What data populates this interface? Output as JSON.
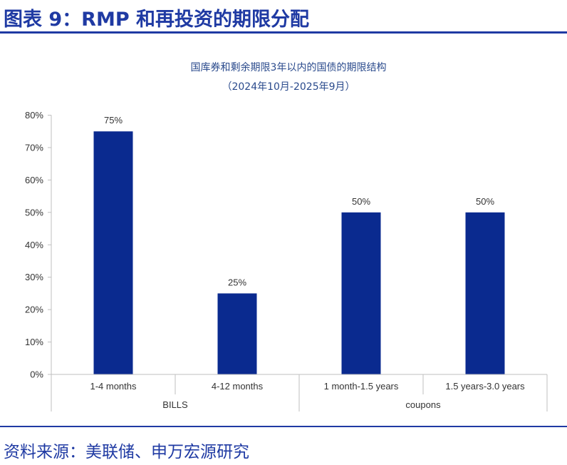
{
  "header": {
    "title": "图表 9：RMP 和再投资的期限分配"
  },
  "footer": {
    "source": "资料来源：美联储、申万宏源研究"
  },
  "colors": {
    "accent": "#1f3aa3",
    "bar": "#0a2a8f",
    "axis": "#bfbfbf"
  },
  "chart_data": {
    "type": "bar",
    "title": "国库券和剩余期限3年以内的国债的期限结构",
    "subtitle": "（2024年10月-2025年9月）",
    "categories": [
      "1-4 months",
      "4-12 months",
      "1 month-1.5 years",
      "1.5 years-3.0 years"
    ],
    "groups": [
      {
        "name": "BILLS",
        "categories": [
          "1-4 months",
          "4-12 months"
        ]
      },
      {
        "name": "coupons",
        "categories": [
          "1 month-1.5 years",
          "1.5 years-3.0 years"
        ]
      }
    ],
    "values": [
      75,
      25,
      50,
      50
    ],
    "data_labels": [
      "75%",
      "25%",
      "50%",
      "50%"
    ],
    "y_ticks": [
      "0%",
      "10%",
      "20%",
      "30%",
      "40%",
      "50%",
      "60%",
      "70%",
      "80%"
    ],
    "ylim": [
      0,
      80
    ],
    "xlabel": "",
    "ylabel": "",
    "grid": false,
    "legend": "none"
  }
}
